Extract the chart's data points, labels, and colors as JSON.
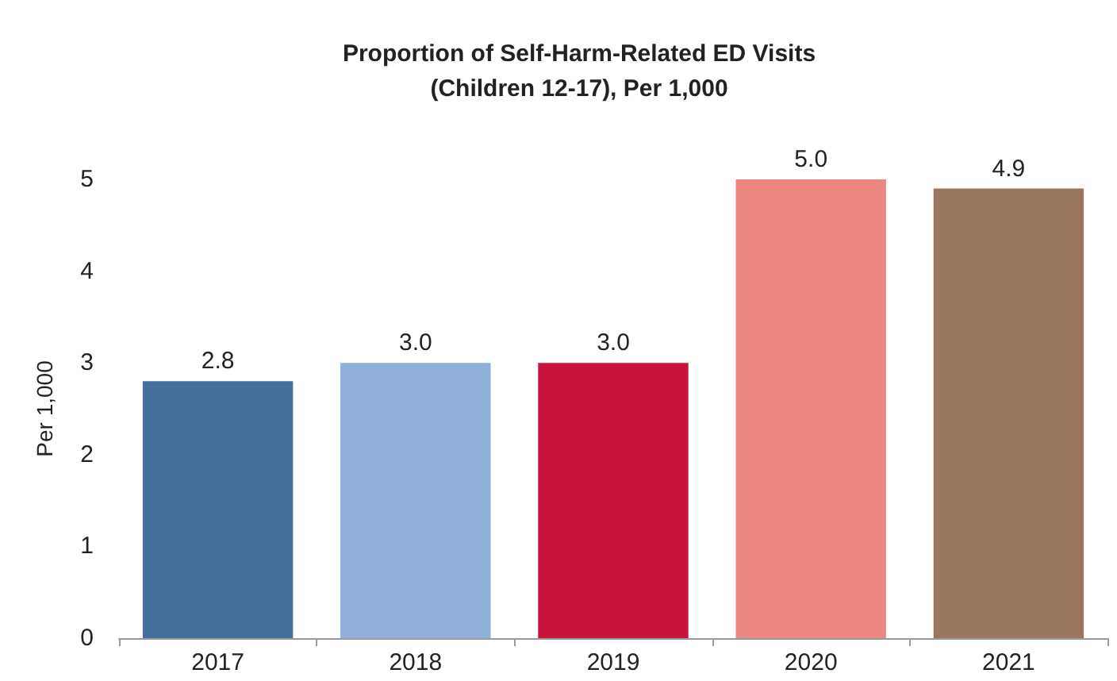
{
  "chart_data": {
    "type": "bar",
    "title": "Proportion of Self-Harm-Related ED Visits\n(Children 12-17), Per 1,000",
    "ylabel": "Per 1,000",
    "categories": [
      "2017",
      "2018",
      "2019",
      "2020",
      "2021"
    ],
    "values": [
      2.8,
      3.0,
      3.0,
      5.0,
      4.9
    ],
    "colors": [
      "#446f9c",
      "#8fb0d6",
      "#c8143a",
      "#ea8880",
      "#9a7660"
    ],
    "value_labels": [
      "2.8",
      "3.0",
      "3.0",
      "5.0",
      "4.9"
    ],
    "ylim": [
      0,
      5
    ],
    "yticks": [
      0,
      1,
      2,
      3,
      4,
      5
    ],
    "grid": false
  }
}
